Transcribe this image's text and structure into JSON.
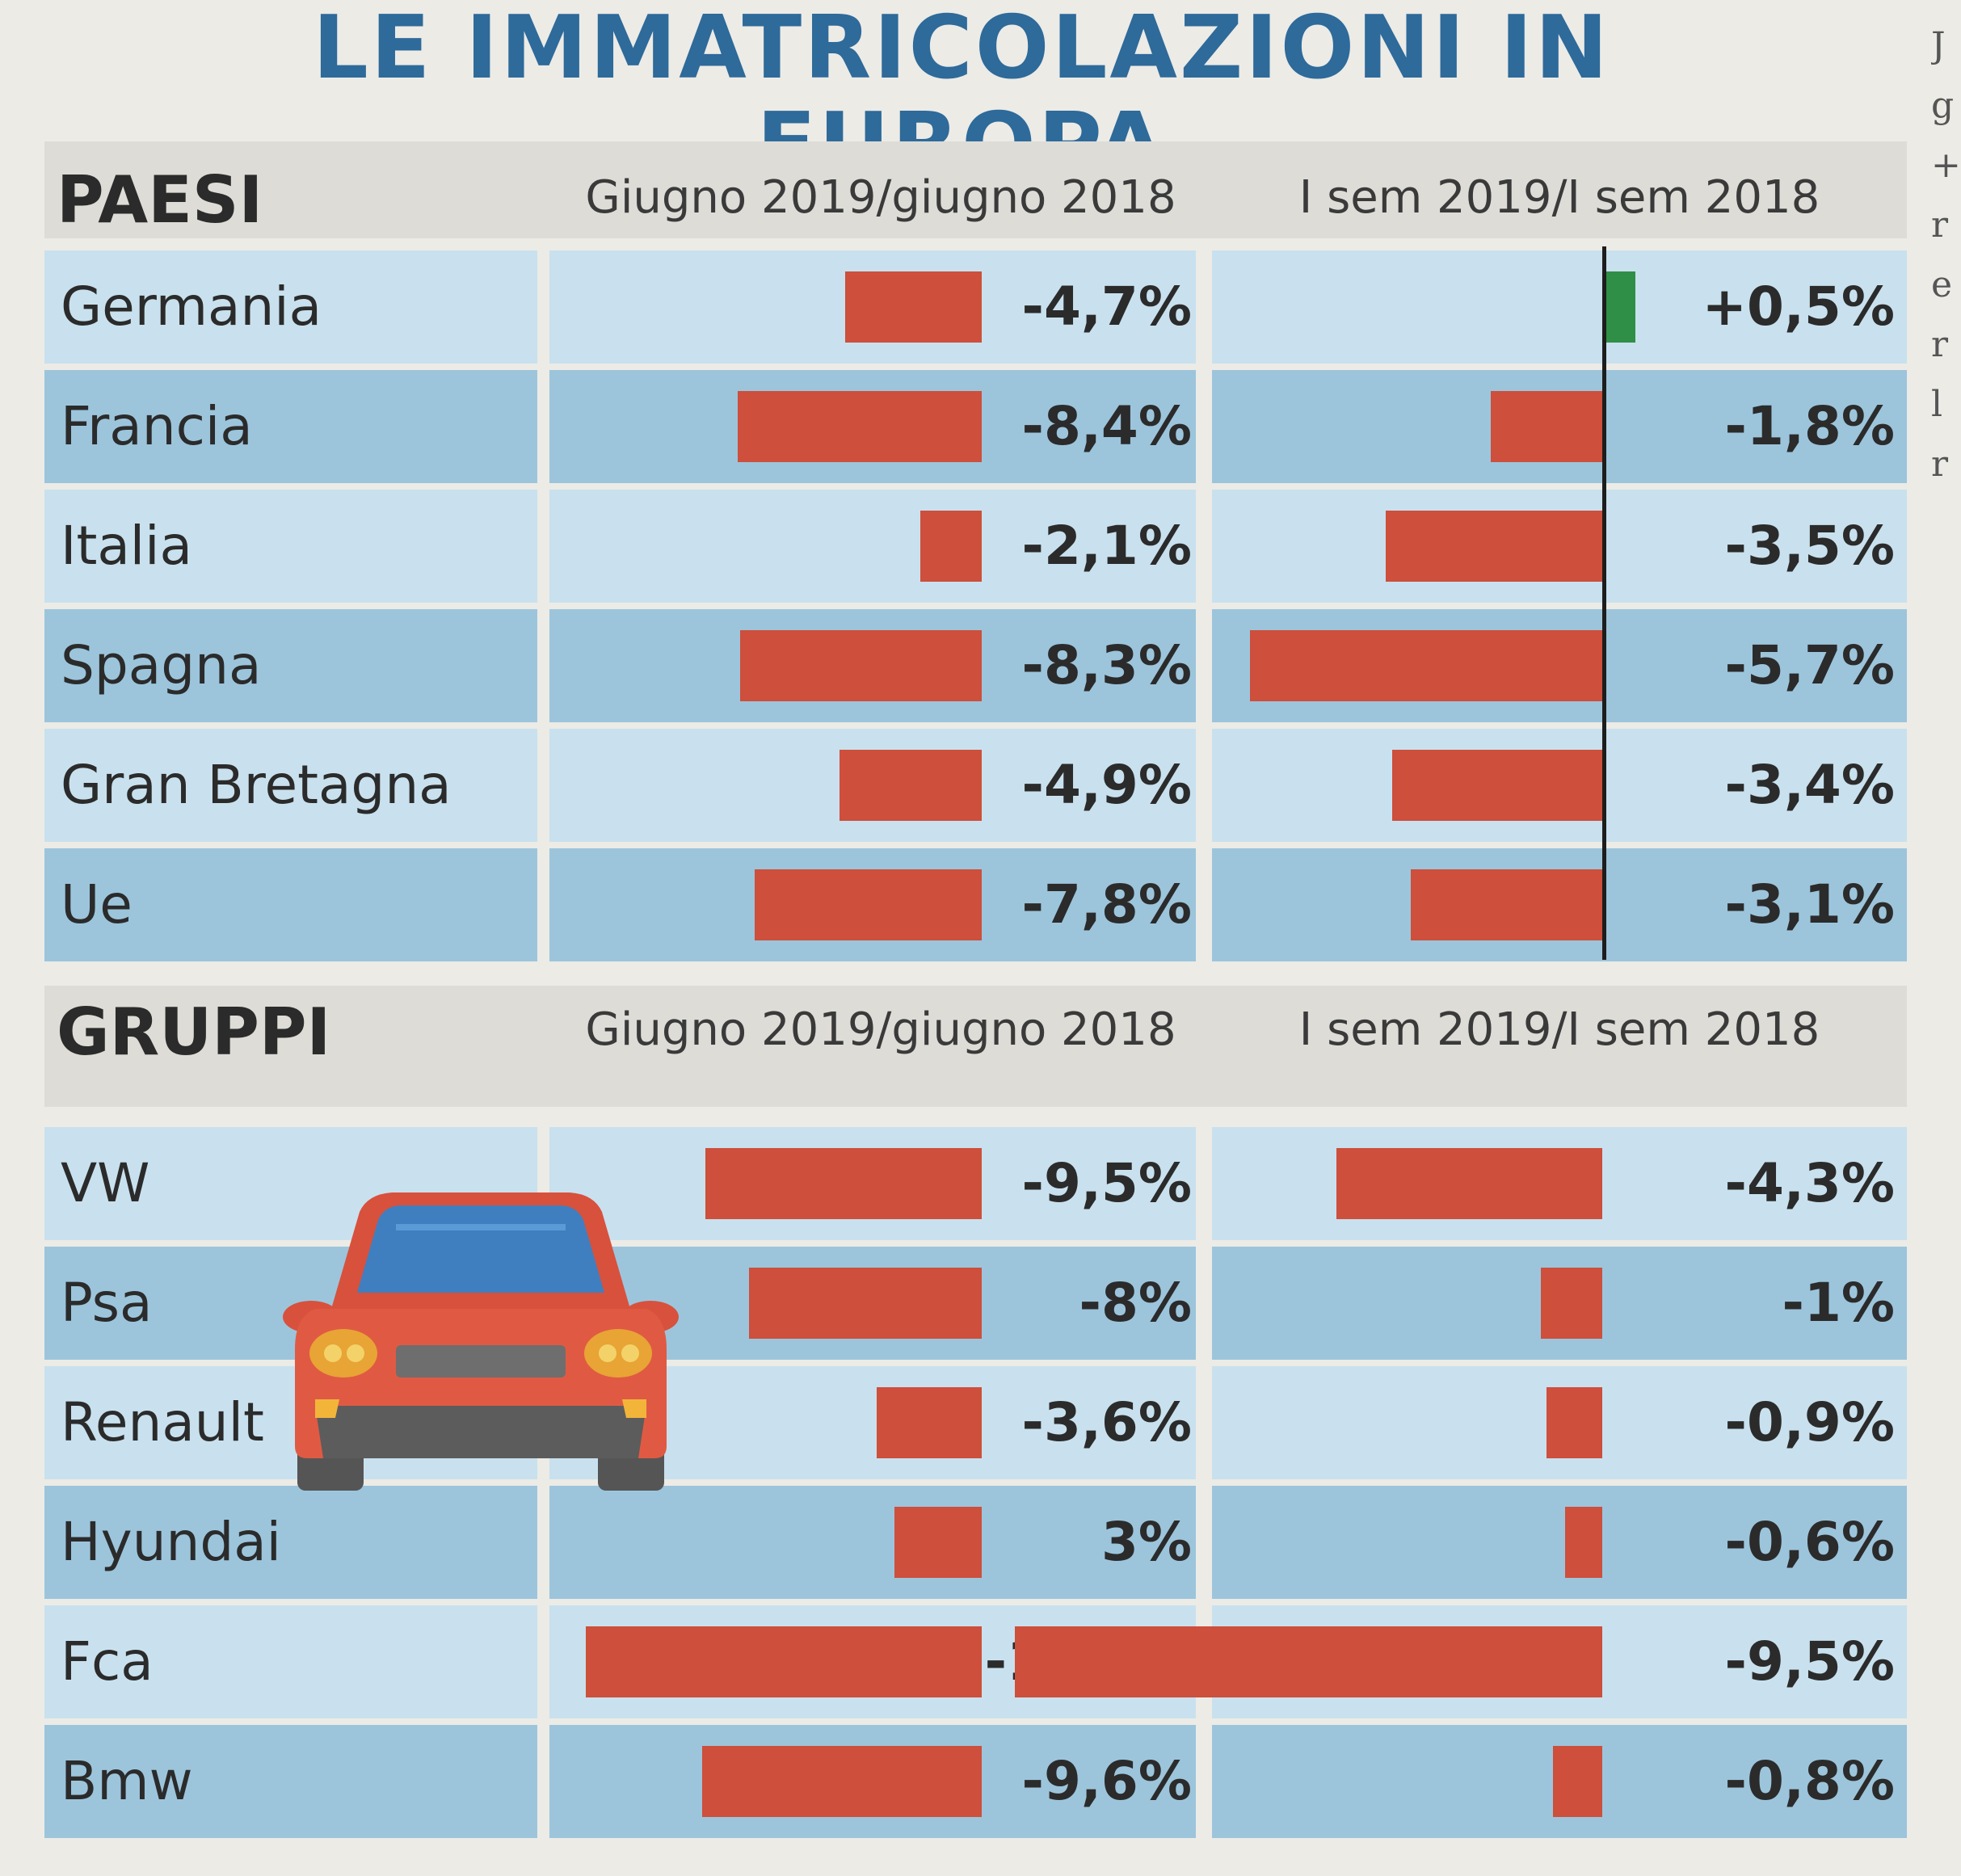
{
  "title": "LE IMMATRICOLAZIONI IN EUROPA",
  "side_fragment": [
    "J",
    "g",
    "+",
    "r",
    "e",
    "r",
    "l",
    "r"
  ],
  "colors": {
    "negative": "#cd4f3c",
    "positive": "#2f8f46",
    "row_light": "#c9e1ee",
    "row_dark": "#9cc5dc",
    "title": "#2e6a9a"
  },
  "chart_data": [
    {
      "type": "bar",
      "section": "PAESI",
      "columns": [
        "Giugno 2019/giugno 2018",
        "I sem 2019/I sem 2018"
      ],
      "categories": [
        "Germania",
        "Francia",
        "Italia",
        "Spagna",
        "Gran Bretagna",
        "Ue"
      ],
      "series": [
        {
          "values": [
            -4.7,
            -8.4,
            -2.1,
            -8.3,
            -4.9,
            -7.8
          ],
          "labels": [
            "-4,7%",
            "-8,4%",
            "-2,1%",
            "-8,3%",
            "-4,9%",
            "-7,8%"
          ]
        },
        {
          "values": [
            0.5,
            -1.8,
            -3.5,
            -5.7,
            -3.4,
            -3.1
          ],
          "labels": [
            "+0,5%",
            "-1,8%",
            "-3,5%",
            "-5,7%",
            "-3,4%",
            "-3,1%"
          ]
        }
      ]
    },
    {
      "type": "bar",
      "section": "GRUPPI",
      "columns": [
        "Giugno 2019/giugno 2018",
        "I sem 2019/I sem 2018"
      ],
      "categories": [
        "VW",
        "Psa",
        "Renault",
        "Hyundai",
        "Fca",
        "Bmw"
      ],
      "series": [
        {
          "values": [
            -9.5,
            -8,
            -3.6,
            3,
            -13.6,
            -9.6
          ],
          "labels": [
            "-9,5%",
            "-8%",
            "-3,6%",
            "3%",
            "-13,6%",
            "-9,6%"
          ]
        },
        {
          "values": [
            -4.3,
            -1,
            -0.9,
            -0.6,
            -9.5,
            -0.8
          ],
          "labels": [
            "-4,3%",
            "-1%",
            "-0,9%",
            "-0,6%",
            "-9,5%",
            "-0,8%"
          ]
        }
      ]
    }
  ]
}
